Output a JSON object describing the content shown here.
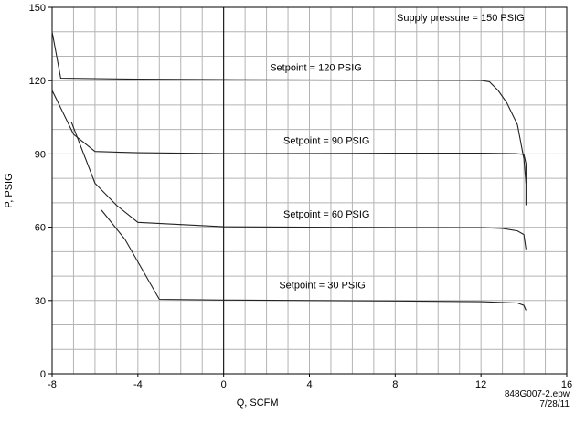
{
  "chart_data": {
    "type": "line",
    "title": "",
    "xlabel": "Q, SCFM",
    "ylabel": "P, PSIG",
    "xlim": [
      -8,
      16
    ],
    "ylim": [
      0,
      150
    ],
    "xticks": [
      -8,
      -4,
      0,
      4,
      8,
      12,
      16
    ],
    "yticks": [
      0,
      30,
      60,
      90,
      120,
      150
    ],
    "xtick_labels": [
      "-8",
      "-4",
      "0",
      "4",
      "8",
      "12",
      "16"
    ],
    "ytick_labels": [
      "0",
      "30",
      "60",
      "90",
      "120",
      "150"
    ],
    "grid": true,
    "annotation_top": "Supply pressure = 150 PSIG",
    "series": [
      {
        "label": "Setpoint = 120 PSIG",
        "label_at": [
          4.3,
          124
        ],
        "x": [
          -8,
          -7.6,
          -4,
          0,
          4,
          8,
          12,
          12.4,
          12.8,
          13.2,
          13.7,
          14.0,
          14.1,
          14.1
        ],
        "y": [
          140,
          121,
          120.6,
          120.4,
          120.3,
          120.2,
          120.1,
          119.5,
          116,
          111,
          102,
          88,
          78,
          69
        ]
      },
      {
        "label": "Setpoint = 90 PSIG",
        "label_at": [
          4.8,
          94
        ],
        "x": [
          -8,
          -7.0,
          -6.0,
          -4,
          0,
          4,
          8,
          12,
          13.6,
          14.0,
          14.1,
          14.1
        ],
        "y": [
          116,
          98,
          91,
          90.5,
          90.1,
          90.2,
          90.3,
          90.3,
          90.1,
          89.8,
          86,
          78
        ]
      },
      {
        "label": "Setpoint = 60 PSIG",
        "label_at": [
          4.8,
          64
        ],
        "x": [
          -7.1,
          -6.0,
          -5.0,
          -4,
          0,
          4,
          8,
          12,
          13.0,
          13.7,
          14.0,
          14.1
        ],
        "y": [
          103,
          78,
          69,
          62,
          60.2,
          60.0,
          59.9,
          59.8,
          59.5,
          58.5,
          57,
          51
        ]
      },
      {
        "label": "Setpoint = 30 PSIG",
        "label_at": [
          4.6,
          35
        ],
        "x": [
          -5.7,
          -4.6,
          -3.0,
          0,
          4,
          8,
          12,
          13.7,
          14.0,
          14.1
        ],
        "y": [
          67,
          55,
          30.5,
          30.2,
          30.0,
          29.8,
          29.5,
          29.0,
          28,
          26
        ]
      }
    ]
  },
  "footer": {
    "filename": "848G007-2.epw",
    "date": "7/28/11"
  }
}
